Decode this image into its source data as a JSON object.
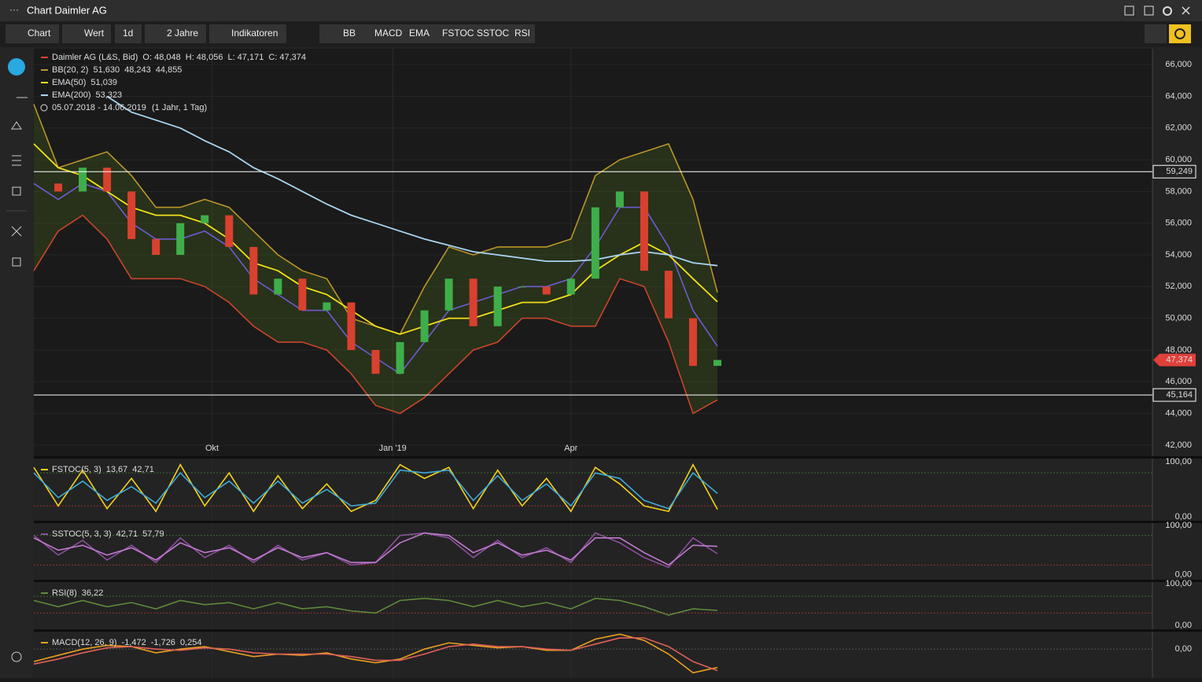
{
  "window": {
    "title": "Chart Daimler AG"
  },
  "toolbar": {
    "left": [
      "Chart",
      "Wert",
      "1d",
      "2 Jahre",
      "Indikatoren"
    ],
    "indicators": [
      "BB",
      "MACD",
      "EMA",
      "FSTOC",
      "SSTOC",
      "RSI"
    ]
  },
  "chart_data": {
    "type": "candlestick",
    "instrument": "Daimler AG (L&S, Bid)",
    "ohlc": [
      "O: 48,048",
      "H: 48,056",
      "L: 47,171",
      "C: 47,374"
    ],
    "range": "05.07.2018 - 14.06.2019",
    "range_note": "(1 Jahr, 1 Tag)",
    "x": [
      0,
      1,
      2,
      3,
      4,
      5,
      6,
      7,
      8,
      9,
      10,
      11,
      12,
      13,
      14,
      15,
      16,
      17,
      18,
      19,
      20,
      21,
      22,
      23,
      24,
      25,
      26,
      27,
      28
    ],
    "xlim": [
      0,
      28
    ],
    "xticks": [
      {
        "value": 7.3,
        "label": "Okt"
      },
      {
        "value": 14.7,
        "label": "Jan '19"
      },
      {
        "value": 22,
        "label": "Apr"
      }
    ],
    "ylim": [
      41.3,
      67.0
    ],
    "yticks": [
      {
        "value": 42,
        "label": "42,000"
      },
      {
        "value": 44,
        "label": "44,000"
      },
      {
        "value": 46,
        "label": "46,000"
      },
      {
        "value": 48,
        "label": "48,000"
      },
      {
        "value": 50,
        "label": "50,000"
      },
      {
        "value": 52,
        "label": "52,000"
      },
      {
        "value": 54,
        "label": "54,000"
      },
      {
        "value": 56,
        "label": "56,000"
      },
      {
        "value": 58,
        "label": "58,000"
      },
      {
        "value": 60,
        "label": "60,000"
      },
      {
        "value": 62,
        "label": "62,000"
      },
      {
        "value": 64,
        "label": "64,000"
      },
      {
        "value": 66,
        "label": "66,000"
      }
    ],
    "grid": true,
    "close": {
      "up_color": "#3fae4a",
      "down_color": "#d9412f",
      "values": [
        58.5,
        58.0,
        59.5,
        58.0,
        55.0,
        54.0,
        56.0,
        56.5,
        54.5,
        51.5,
        52.5,
        50.5,
        51.0,
        48.0,
        46.5,
        48.5,
        50.5,
        52.5,
        49.5,
        52.0,
        52.0,
        51.5,
        52.5,
        57.0,
        58.0,
        53.0,
        50.0,
        47.0,
        47.374
      ]
    },
    "hlines": [
      {
        "value": 59.249,
        "label": "59,249"
      },
      {
        "value": 45.164,
        "label": "45,164"
      }
    ],
    "last": {
      "value": 47.374,
      "label": "47,374",
      "color": "#e0403a"
    },
    "bb": {
      "name": "BB(20, 2)",
      "readouts": [
        "51,630",
        "48,243",
        "44,855"
      ],
      "fill": "rgba(70,95,30,0.35)",
      "upper": {
        "color": "#b8952c",
        "values": [
          63.5,
          59.5,
          60.0,
          60.5,
          59.0,
          57.0,
          57.0,
          57.5,
          57.0,
          55.5,
          54.0,
          53.0,
          52.5,
          50.0,
          49.5,
          49.0,
          52.0,
          54.5,
          54.0,
          54.5,
          54.5,
          54.5,
          55.0,
          59.0,
          60.0,
          60.5,
          61.0,
          57.5,
          51.63
        ]
      },
      "middle": {
        "color": "#6d5bd0",
        "values": [
          58.5,
          57.5,
          58.5,
          58.0,
          56.0,
          55.0,
          55.0,
          55.5,
          54.5,
          52.5,
          51.5,
          50.5,
          50.5,
          48.5,
          47.5,
          46.5,
          48.5,
          50.5,
          51.0,
          51.5,
          52.0,
          52.0,
          52.5,
          54.5,
          57.0,
          57.0,
          54.5,
          50.5,
          48.243
        ]
      },
      "lower": {
        "color": "#c8452c",
        "values": [
          53.0,
          55.5,
          56.5,
          55.0,
          52.5,
          52.5,
          52.5,
          52.0,
          51.0,
          49.5,
          48.5,
          48.5,
          48.0,
          46.5,
          44.5,
          44.0,
          45.0,
          46.5,
          48.0,
          48.5,
          50.0,
          50.0,
          49.5,
          49.5,
          52.5,
          52.0,
          48.5,
          44.0,
          44.855
        ]
      }
    },
    "series": [
      {
        "name": "EMA(50)",
        "readout": "51,039",
        "color": "#f2e01c",
        "values": [
          61.0,
          59.5,
          59.0,
          58.0,
          57.0,
          56.5,
          56.5,
          56.0,
          55.0,
          53.5,
          53.0,
          52.0,
          51.5,
          50.5,
          49.5,
          49.0,
          49.5,
          50.0,
          50.0,
          50.5,
          51.0,
          51.0,
          51.5,
          53.0,
          54.0,
          54.8,
          54.0,
          52.5,
          51.039
        ]
      },
      {
        "name": "EMA(200)",
        "readout": "53,323",
        "color": "#a9d5f0",
        "values": [
          null,
          null,
          null,
          64.0,
          63.0,
          62.5,
          62.0,
          61.2,
          60.5,
          59.5,
          58.8,
          58.0,
          57.2,
          56.5,
          56.0,
          55.5,
          55.0,
          54.6,
          54.2,
          54.0,
          53.8,
          53.6,
          53.6,
          53.7,
          54.0,
          54.2,
          54.0,
          53.5,
          53.323
        ]
      }
    ]
  },
  "panels": [
    {
      "name": "FSTOC(5, 3)",
      "ylim": [
        -7,
        106
      ],
      "yticks": [
        {
          "value": 0,
          "label": "0,00"
        },
        {
          "value": 100,
          "label": "100,00"
        }
      ],
      "levels": [
        80,
        20
      ],
      "series": [
        {
          "color": "#f2d21c",
          "readout": "13,67",
          "values": [
            90,
            20,
            85,
            15,
            70,
            10,
            95,
            20,
            80,
            10,
            75,
            15,
            60,
            10,
            30,
            95,
            70,
            90,
            15,
            85,
            20,
            70,
            10,
            90,
            60,
            20,
            10,
            95,
            13.67
          ]
        },
        {
          "color": "#3ea8d8",
          "readout": "42,71",
          "values": [
            80,
            35,
            65,
            30,
            55,
            25,
            80,
            35,
            65,
            25,
            65,
            25,
            50,
            20,
            25,
            85,
            80,
            85,
            30,
            75,
            30,
            60,
            20,
            80,
            70,
            30,
            15,
            80,
            42.71
          ]
        }
      ]
    },
    {
      "name": "SSTOC(5, 3, 3)",
      "ylim": [
        -10,
        105
      ],
      "yticks": [
        {
          "value": 0,
          "label": "0,00"
        },
        {
          "value": 100,
          "label": "100,00"
        }
      ],
      "levels": [
        80,
        20
      ],
      "series": [
        {
          "color": "#8a4f9c",
          "readout": "42,71",
          "values": [
            80,
            40,
            70,
            30,
            60,
            25,
            75,
            35,
            60,
            25,
            60,
            30,
            45,
            20,
            25,
            80,
            85,
            75,
            35,
            70,
            35,
            55,
            25,
            85,
            65,
            35,
            15,
            75,
            42.71
          ]
        },
        {
          "color": "#c07ad0",
          "readout": "57,79",
          "values": [
            75,
            50,
            60,
            40,
            55,
            30,
            65,
            45,
            55,
            30,
            55,
            35,
            45,
            25,
            25,
            65,
            85,
            80,
            45,
            65,
            40,
            50,
            30,
            75,
            75,
            45,
            20,
            60,
            57.79
          ]
        }
      ]
    },
    {
      "name": "RSI(8)",
      "ylim": [
        -9,
        104
      ],
      "yticks": [
        {
          "value": 0,
          "label": "0,00"
        },
        {
          "value": 100,
          "label": "100,00"
        }
      ],
      "levels": [
        70,
        30
      ],
      "series": [
        {
          "color": "#5e8a3a",
          "readout": "36,22",
          "values": [
            60,
            45,
            60,
            45,
            55,
            40,
            60,
            50,
            55,
            40,
            55,
            40,
            45,
            35,
            30,
            60,
            65,
            60,
            45,
            60,
            45,
            55,
            40,
            65,
            60,
            45,
            25,
            40,
            36.22
          ]
        }
      ]
    },
    {
      "name": "MACD(12, 26, 9)",
      "ylim": [
        -2.2,
        1.4
      ],
      "yticks": [
        {
          "value": 0,
          "label": "0,00"
        }
      ],
      "levels": [],
      "readout_extra": "0,254",
      "series": [
        {
          "color": "#e8a020",
          "readout": "-1,472",
          "values": [
            -1.0,
            -0.5,
            0.0,
            0.3,
            0.2,
            -0.3,
            0.0,
            0.2,
            -0.2,
            -0.6,
            -0.4,
            -0.5,
            -0.3,
            -0.8,
            -1.1,
            -0.8,
            0.0,
            0.5,
            0.3,
            0.1,
            0.2,
            -0.1,
            -0.1,
            0.8,
            1.2,
            0.7,
            -0.4,
            -1.9,
            -1.472
          ]
        },
        {
          "color": "#e0605a",
          "readout": "-1,726",
          "values": [
            -1.2,
            -0.8,
            -0.3,
            0.1,
            0.2,
            0.0,
            -0.1,
            0.1,
            0.0,
            -0.3,
            -0.4,
            -0.4,
            -0.4,
            -0.6,
            -0.9,
            -0.9,
            -0.4,
            0.2,
            0.4,
            0.2,
            0.2,
            0.0,
            -0.1,
            0.4,
            0.9,
            0.9,
            0.2,
            -1.0,
            -1.726
          ]
        }
      ]
    }
  ]
}
